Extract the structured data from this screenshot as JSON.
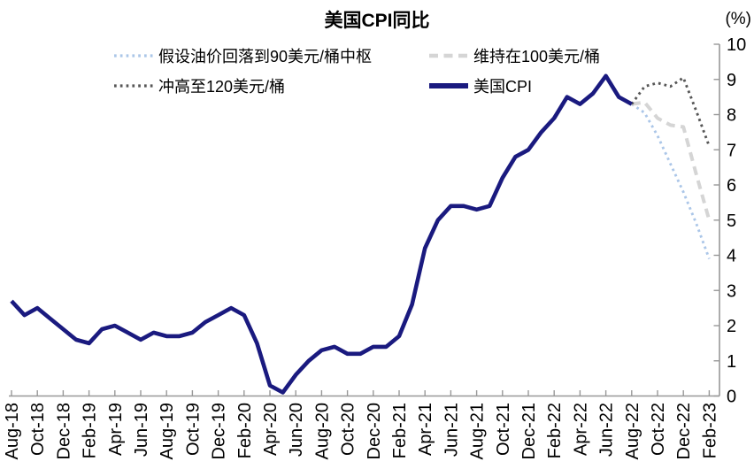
{
  "chart_data": {
    "type": "line",
    "title": "美国CPI同比",
    "unit_label": "(%)",
    "grid": false,
    "legend_position": "top",
    "axis_color": "#989898",
    "text_color": "#000000",
    "x_axis": {
      "months_total": 55,
      "first_month": "Aug-18",
      "last_month": "Feb-23",
      "tick_labels": [
        "Aug-18",
        "Oct-18",
        "Dec-18",
        "Feb-19",
        "Apr-19",
        "Jun-19",
        "Aug-19",
        "Oct-19",
        "Dec-19",
        "Feb-20",
        "Apr-20",
        "Jun-20",
        "Aug-20",
        "Oct-20",
        "Dec-20",
        "Feb-21",
        "Apr-21",
        "Jun-21",
        "Aug-21",
        "Oct-21",
        "Dec-21",
        "Feb-22",
        "Apr-22",
        "Jun-22",
        "Aug-22",
        "Oct-22",
        "Dec-22",
        "Feb-23"
      ]
    },
    "y_axis": {
      "min": 0,
      "max": 10,
      "ticks": [
        0,
        1,
        2,
        3,
        4,
        5,
        6,
        7,
        8,
        9,
        10
      ]
    },
    "series": [
      {
        "key": "oil90",
        "name": "假设油价回落到90美元/桶中枢",
        "color": "#ABC6E8",
        "style": "dotted",
        "start_month": 48,
        "forecast_x": [
          "Aug-22",
          "Sep-22",
          "Oct-22",
          "Nov-22",
          "Dec-22",
          "Jan-23",
          "Feb-23"
        ],
        "values": [
          8.3,
          8.05,
          7.4,
          6.6,
          5.8,
          4.9,
          3.9
        ]
      },
      {
        "key": "oil100",
        "name": "维持在100美元/桶",
        "color": "#D5D5D5",
        "style": "dashed",
        "start_month": 48,
        "forecast_x": [
          "Aug-22",
          "Sep-22",
          "Oct-22",
          "Nov-22",
          "Dec-22",
          "Jan-23",
          "Feb-23"
        ],
        "values": [
          8.3,
          8.35,
          7.9,
          7.7,
          7.65,
          6.3,
          5.0
        ]
      },
      {
        "key": "oil120",
        "name": "冲高至120美元/桶",
        "color": "#565656",
        "style": "dotted",
        "start_month": 48,
        "forecast_x": [
          "Aug-22",
          "Sep-22",
          "Oct-22",
          "Nov-22",
          "Dec-22",
          "Jan-23",
          "Feb-23"
        ],
        "values": [
          8.3,
          8.8,
          8.9,
          8.8,
          9.05,
          8.1,
          7.1
        ]
      },
      {
        "key": "cpi",
        "name": "美国CPI",
        "color": "#1A1A7F",
        "style": "solid",
        "start_month": 0,
        "values": [
          2.7,
          2.3,
          2.5,
          2.2,
          1.9,
          1.6,
          1.5,
          1.9,
          2.0,
          1.8,
          1.6,
          1.8,
          1.7,
          1.7,
          1.8,
          2.1,
          2.3,
          2.5,
          2.3,
          1.5,
          0.3,
          0.1,
          0.6,
          1.0,
          1.3,
          1.4,
          1.2,
          1.2,
          1.4,
          1.4,
          1.7,
          2.6,
          4.2,
          5.0,
          5.4,
          5.4,
          5.3,
          5.4,
          6.2,
          6.8,
          7.0,
          7.5,
          7.9,
          8.5,
          8.3,
          8.6,
          9.1,
          8.5,
          8.3
        ]
      }
    ]
  }
}
